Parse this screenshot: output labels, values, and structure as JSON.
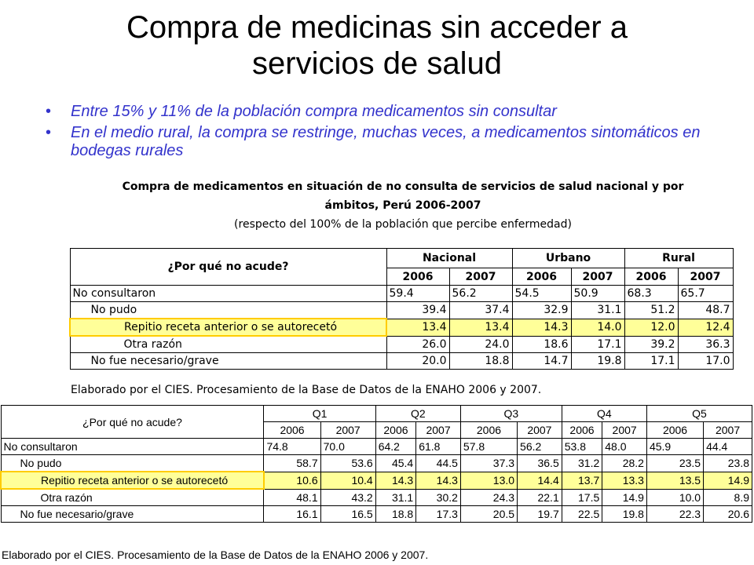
{
  "slide": {
    "title_line1": "Compra de medicinas sin acceder a",
    "title_line2": "servicios de salud",
    "bullets": [
      "Entre 15% y 11% de la población compra medicamentos sin consultar",
      "En el medio rural, la compra se restringe, muchas veces, a medicamentos sintomáticos en bodegas rurales"
    ],
    "bullet_glyph": "•",
    "bullet_color": "#3333cc"
  },
  "caption": {
    "line1": "Compra de medicamentos en situación de no consulta de servicios de salud nacional y por",
    "line2": "ámbitos, Perú 2006-2007",
    "line3": "(respecto del 100% de la población que percibe enfermedad)"
  },
  "table1": {
    "question_header": "¿Por qué no acude?",
    "groups": [
      "Nacional",
      "Urbano",
      "Rural"
    ],
    "years": [
      "2006",
      "2007",
      "2006",
      "2007",
      "2006",
      "2007"
    ],
    "rows": [
      {
        "label": "No consultaron",
        "values": [
          "59.4",
          "56.2",
          "54.5",
          "50.9",
          "68.3",
          "65.7"
        ]
      },
      {
        "label": "No pudo",
        "values": [
          "39.4",
          "37.4",
          "32.9",
          "31.1",
          "51.2",
          "48.7"
        ]
      },
      {
        "label": "Repitio receta anterior o se autorecetó",
        "values": [
          "13.4",
          "13.4",
          "14.3",
          "14.0",
          "12.0",
          "12.4"
        ]
      },
      {
        "label": "Otra razón",
        "values": [
          "26.0",
          "24.0",
          "18.6",
          "17.1",
          "39.2",
          "36.3"
        ]
      },
      {
        "label": "No fue necesario/grave",
        "values": [
          "20.0",
          "18.8",
          "14.7",
          "19.8",
          "17.1",
          "17.0"
        ]
      }
    ],
    "highlight_color": "#ffff99",
    "highlight_border": "#ffcc00",
    "source": "Elaborado por el CIES. Procesamiento de la Base de Datos de la  ENAHO 2006 y 2007."
  },
  "table2": {
    "question_header": "¿Por qué no acude?",
    "groups": [
      "Q1",
      "Q2",
      "Q3",
      "Q4",
      "Q5"
    ],
    "years": [
      "2006",
      "2007",
      "2006",
      "2007",
      "2006",
      "2007",
      "2006",
      "2007",
      "2006",
      "2007"
    ],
    "rows": [
      {
        "label": "No consultaron",
        "values": [
          "74.8",
          "70.0",
          "64.2",
          "61.8",
          "57.8",
          "56.2",
          "53.8",
          "48.0",
          "45.9",
          "44.4"
        ]
      },
      {
        "label": "No pudo",
        "values": [
          "58.7",
          "53.6",
          "45.4",
          "44.5",
          "37.3",
          "36.5",
          "31.2",
          "28.2",
          "23.5",
          "23.8"
        ]
      },
      {
        "label": "Repitio receta anterior o se autorecetó",
        "values": [
          "10.6",
          "10.4",
          "14.3",
          "14.3",
          "13.0",
          "14.4",
          "13.7",
          "13.3",
          "13.5",
          "14.9"
        ]
      },
      {
        "label": "Otra razón",
        "values": [
          "48.1",
          "43.2",
          "31.1",
          "30.2",
          "24.3",
          "22.1",
          "17.5",
          "14.9",
          "10.0",
          "8.9"
        ]
      },
      {
        "label": "No fue necesario/grave",
        "values": [
          "16.1",
          "16.5",
          "18.8",
          "17.3",
          "20.5",
          "19.7",
          "22.5",
          "19.8",
          "22.3",
          "20.6"
        ]
      }
    ],
    "source": "Elaborado por el CIES. Procesamiento de la Base de Datos de la  ENAHO 2006 y 2007."
  }
}
